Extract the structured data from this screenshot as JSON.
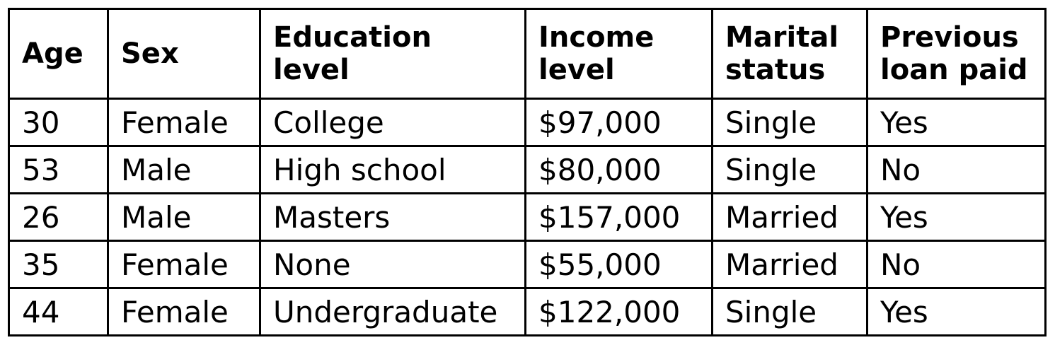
{
  "table": {
    "headers": [
      [
        "Age"
      ],
      [
        "Sex"
      ],
      [
        "Education",
        "level"
      ],
      [
        "Income",
        "level"
      ],
      [
        "Marital",
        "status"
      ],
      [
        "Previous",
        "loan paid"
      ]
    ],
    "rows": [
      [
        "30",
        "Female",
        "College",
        "$97,000",
        "Single",
        "Yes"
      ],
      [
        "53",
        "Male",
        "High school",
        "$80,000",
        "Single",
        "No"
      ],
      [
        "26",
        "Male",
        "Masters",
        "$157,000",
        "Married",
        "Yes"
      ],
      [
        "35",
        "Female",
        "None",
        "$55,000",
        "Married",
        "No"
      ],
      [
        "44",
        "Female",
        "Undergraduate",
        "$122,000",
        "Single",
        "Yes"
      ]
    ]
  }
}
